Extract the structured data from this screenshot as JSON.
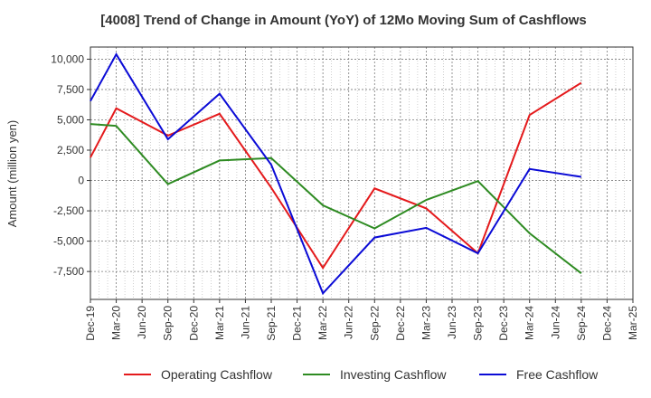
{
  "chart_data": {
    "type": "line",
    "title": "[4008]  Trend of Change in Amount (YoY) of 12Mo Moving Sum of Cashflows",
    "xlabel": "",
    "ylabel": "Amount (million yen)",
    "ylim": [
      -9800,
      11000
    ],
    "yticks": [
      10000,
      7500,
      5000,
      2500,
      0,
      -2500,
      -5000,
      -7500
    ],
    "ytick_labels": [
      "10,000",
      "7,500",
      "5,000",
      "2,500",
      "0",
      "-2,500",
      "-5,000",
      "-7,500"
    ],
    "categories": [
      "Dec-19",
      "Mar-20",
      "Jun-20",
      "Sep-20",
      "Dec-20",
      "Mar-21",
      "Jun-21",
      "Sep-21",
      "Dec-21",
      "Mar-22",
      "Jun-22",
      "Sep-22",
      "Dec-22",
      "Mar-23",
      "Jun-23",
      "Sep-23",
      "Dec-23",
      "Mar-24",
      "Jun-24",
      "Sep-24",
      "Dec-24",
      "Mar-25"
    ],
    "grid": true,
    "legend_position": "bottom",
    "series": [
      {
        "name": "Operating Cashflow",
        "color": "#e41a1c",
        "values": [
          1900,
          5950,
          null,
          3700,
          null,
          5500,
          null,
          -600,
          null,
          -7200,
          null,
          -650,
          null,
          -2300,
          null,
          -6000,
          null,
          5400,
          null,
          8050,
          null,
          null
        ]
      },
      {
        "name": "Investing Cashflow",
        "color": "#2e8b22",
        "values": [
          4650,
          4500,
          null,
          -300,
          null,
          1650,
          null,
          1850,
          null,
          -2050,
          null,
          -3950,
          null,
          -1600,
          null,
          -50,
          null,
          -4350,
          null,
          -7650,
          null,
          null
        ]
      },
      {
        "name": "Free Cashflow",
        "color": "#0b0bd6",
        "values": [
          6550,
          10400,
          null,
          3400,
          null,
          7150,
          null,
          1300,
          null,
          -9300,
          null,
          -4700,
          null,
          -3900,
          null,
          -6000,
          null,
          950,
          null,
          300,
          null,
          null
        ]
      }
    ]
  }
}
